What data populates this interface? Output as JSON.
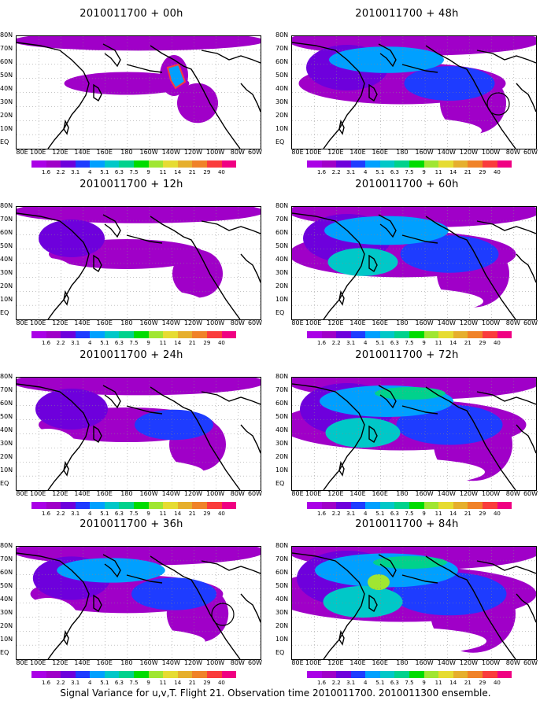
{
  "caption": "Signal Variance for u,v,T. Flight 21. Observation time 2010011700. 2010011300 ensemble.",
  "panels": [
    {
      "title": "2010011700 + 00h",
      "level": 0.15,
      "extra": "alaska"
    },
    {
      "title": "2010011700 + 48h",
      "level": 0.55,
      "extra": "circle"
    },
    {
      "title": "2010011700 + 12h",
      "level": 0.3,
      "extra": ""
    },
    {
      "title": "2010011700 + 60h",
      "level": 0.65,
      "extra": ""
    },
    {
      "title": "2010011700 + 24h",
      "level": 0.4,
      "extra": ""
    },
    {
      "title": "2010011700 + 72h",
      "level": 0.75,
      "extra": ""
    },
    {
      "title": "2010011700 + 36h",
      "level": 0.48,
      "extra": "circle"
    },
    {
      "title": "2010011700 + 84h",
      "level": 0.85,
      "extra": ""
    }
  ],
  "y_labels": [
    "80N",
    "70N",
    "60N",
    "50N",
    "40N",
    "30N",
    "20N",
    "10N",
    "EQ"
  ],
  "x_labels": [
    "80E",
    "100E",
    "120E",
    "140E",
    "160E",
    "180",
    "160W",
    "140W",
    "120W",
    "100W",
    "80W",
    "60W"
  ],
  "colorbar": {
    "labels": [
      "1.6",
      "2.2",
      "3.1",
      "4",
      "5.1",
      "6.3",
      "7.5",
      "9",
      "11",
      "14",
      "21",
      "29",
      "40"
    ],
    "colors": [
      "#a000c8",
      "#6e00dc",
      "#1e3cff",
      "#00a0ff",
      "#00c8c8",
      "#00d28c",
      "#00dc00",
      "#a0e632",
      "#e6dc32",
      "#e6af2d",
      "#f08228",
      "#fa3c3c",
      "#f00082"
    ]
  }
}
